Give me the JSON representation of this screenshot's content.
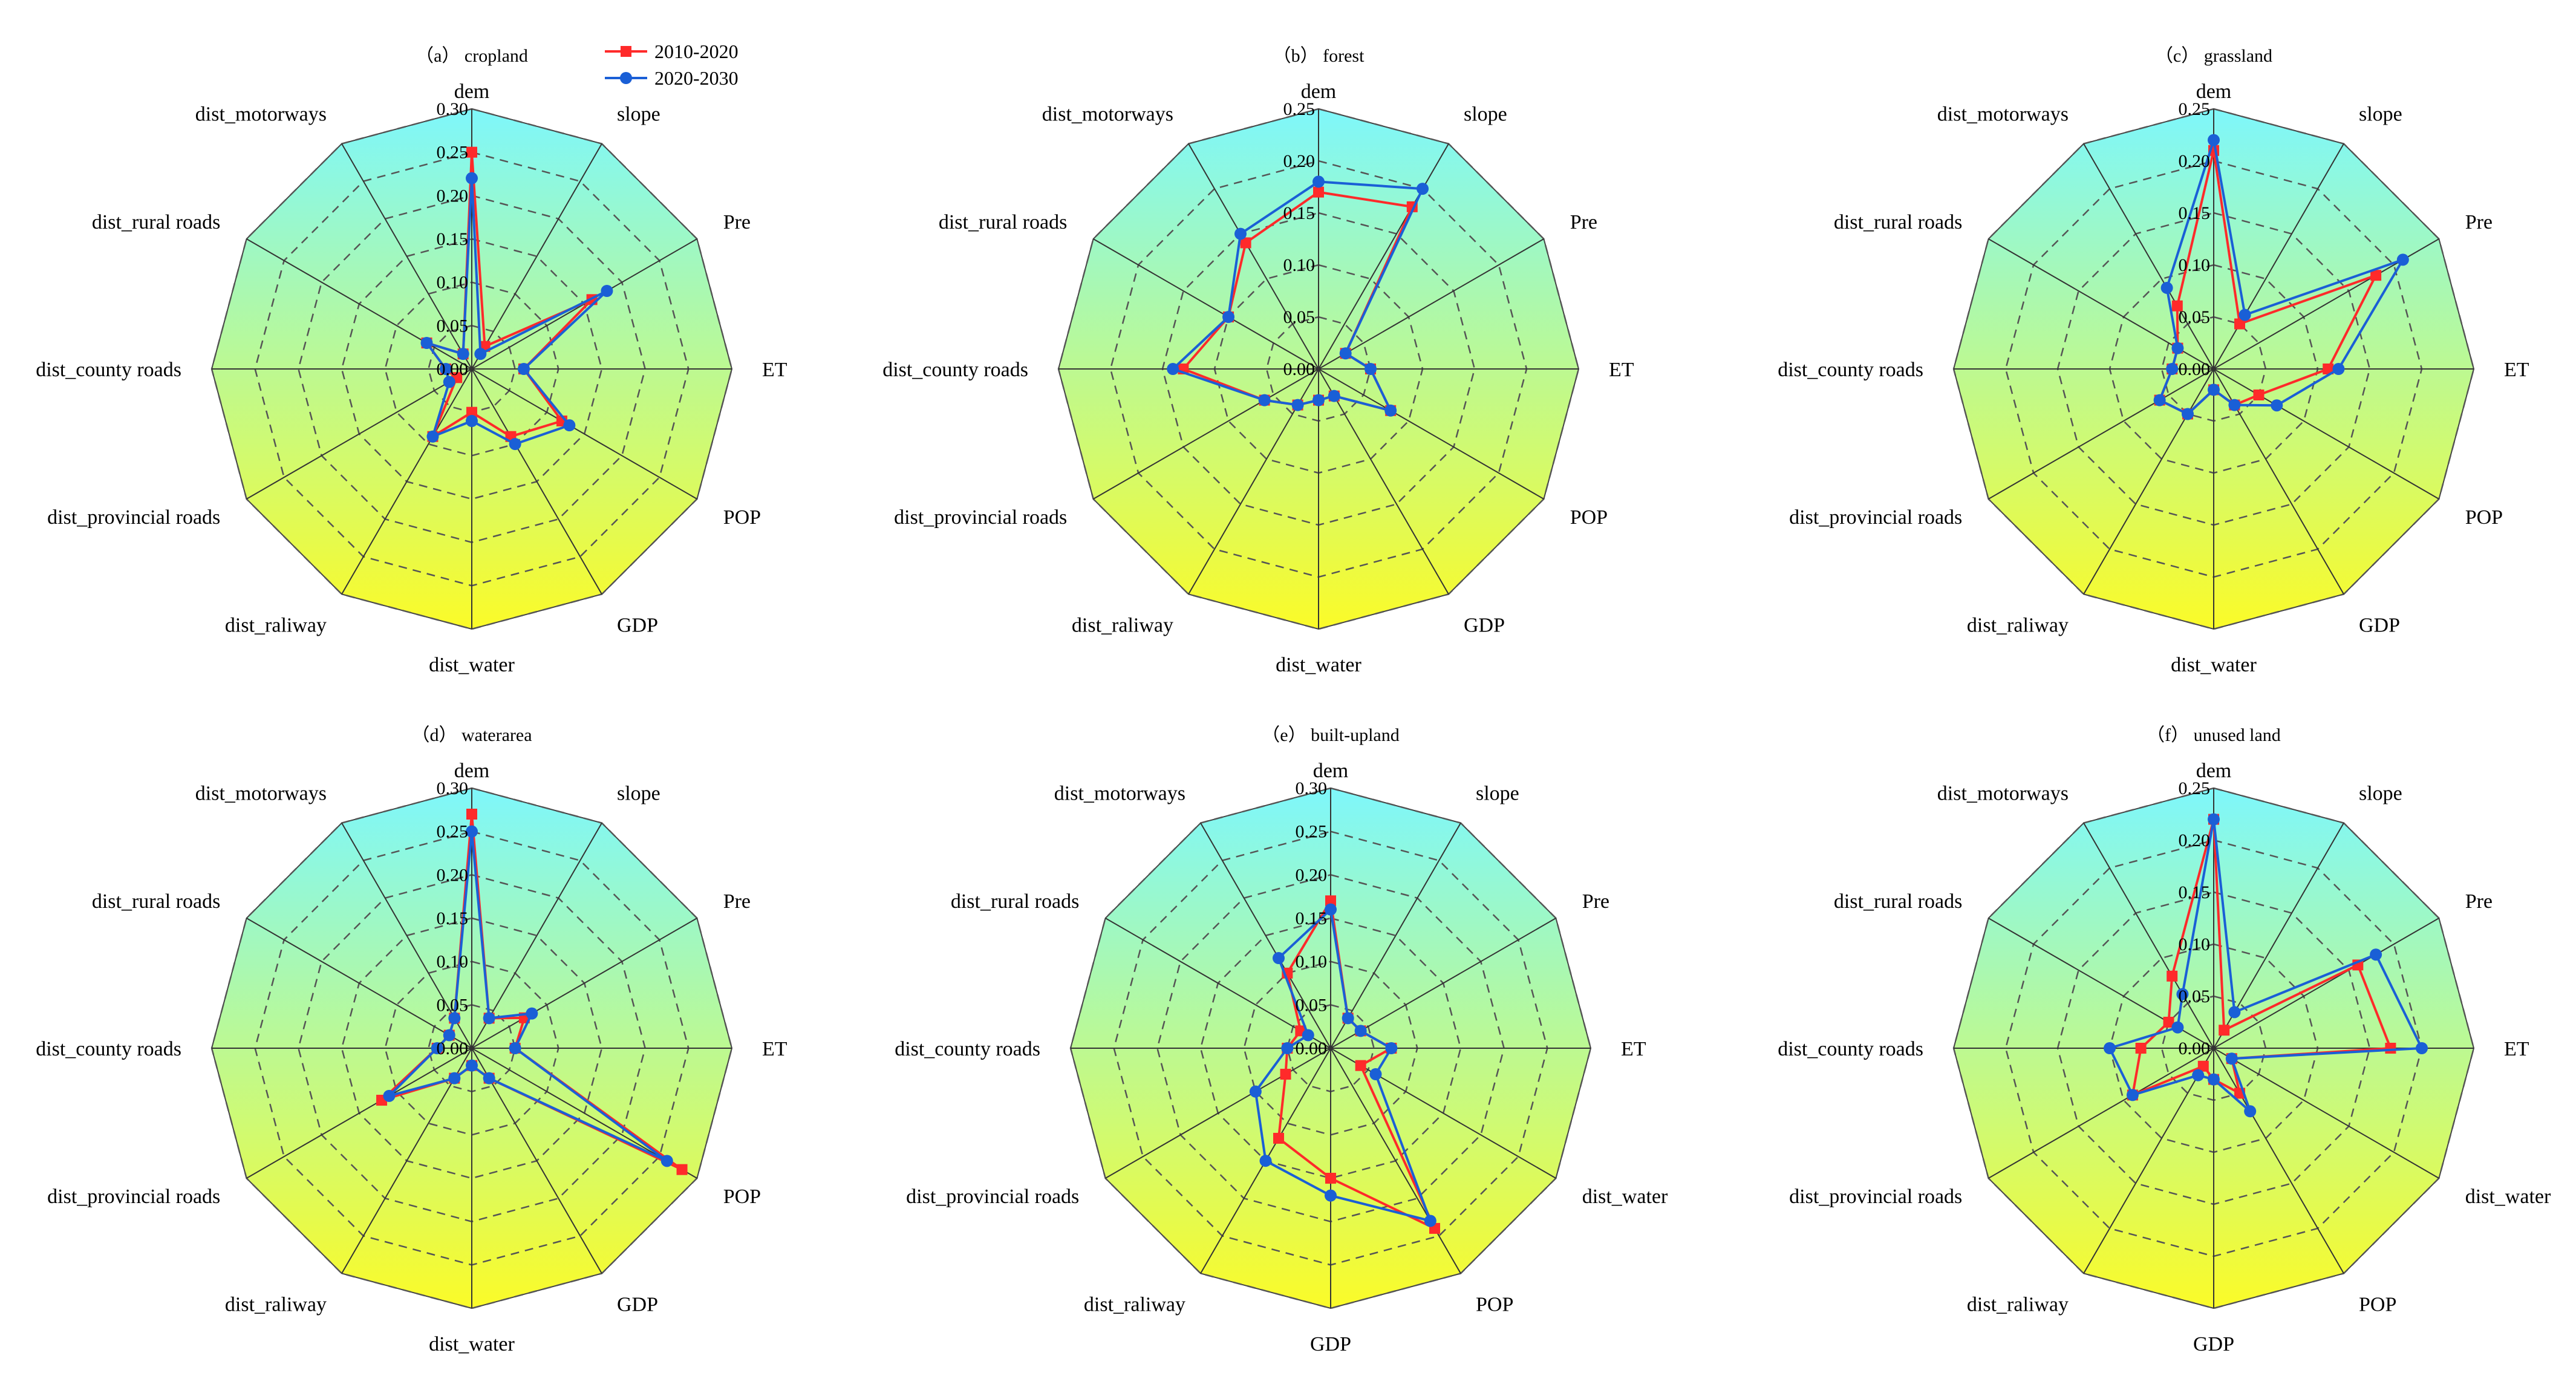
{
  "legend": {
    "series": [
      {
        "name": "2010-2020",
        "color": "#ff2a2a",
        "marker": "square"
      },
      {
        "name": "2020-2030",
        "color": "#1a5fd6",
        "marker": "circle"
      }
    ]
  },
  "colors": {
    "gradient_top": "#7ef7fb",
    "gradient_bottom": "#fbfb28",
    "grid": "#555555"
  },
  "chart_data": [
    {
      "type": "radar",
      "title": "（a） cropland",
      "rmax": 0.3,
      "ticks": [
        "0.00",
        "0.05",
        "0.10",
        "0.15",
        "0.20",
        "0.25",
        "0.30"
      ],
      "tick_values": [
        0,
        0.05,
        0.1,
        0.15,
        0.2,
        0.25,
        0.3
      ],
      "categories": [
        "dem",
        "slope",
        "Pre",
        "ET",
        "POP",
        "GDP",
        "dist_water",
        "dist_raliway",
        "dist_provincial roads",
        "dist_county roads",
        "dist_rural roads",
        "dist_motorways"
      ],
      "series": [
        {
          "name": "2010-2020",
          "values": [
            0.25,
            0.03,
            0.16,
            0.06,
            0.12,
            0.09,
            0.05,
            0.09,
            0.02,
            0.03,
            0.06,
            0.02
          ]
        },
        {
          "name": "2020-2030",
          "values": [
            0.22,
            0.02,
            0.18,
            0.06,
            0.13,
            0.1,
            0.06,
            0.09,
            0.03,
            0.03,
            0.06,
            0.02
          ]
        }
      ]
    },
    {
      "type": "radar",
      "title": "（b） forest",
      "rmax": 0.25,
      "ticks": [
        "0.00",
        "0.05",
        "0.10",
        "0.15",
        "0.20",
        "0.25"
      ],
      "tick_values": [
        0,
        0.05,
        0.1,
        0.15,
        0.2,
        0.25
      ],
      "categories": [
        "dem",
        "slope",
        "Pre",
        "ET",
        "POP",
        "GDP",
        "dist_water",
        "dist_raliway",
        "dist_provincial roads",
        "dist_county roads",
        "dist_rural roads",
        "dist_motorways"
      ],
      "series": [
        {
          "name": "2010-2020",
          "values": [
            0.17,
            0.18,
            0.03,
            0.05,
            0.08,
            0.03,
            0.03,
            0.04,
            0.06,
            0.13,
            0.1,
            0.14
          ]
        },
        {
          "name": "2020-2030",
          "values": [
            0.18,
            0.2,
            0.03,
            0.05,
            0.08,
            0.03,
            0.03,
            0.04,
            0.06,
            0.14,
            0.1,
            0.15
          ]
        }
      ]
    },
    {
      "type": "radar",
      "title": "（c） grassland",
      "rmax": 0.25,
      "ticks": [
        "0.00",
        "0.05",
        "0.10",
        "0.15",
        "0.20",
        "0.25"
      ],
      "tick_values": [
        0,
        0.05,
        0.1,
        0.15,
        0.2,
        0.25
      ],
      "categories": [
        "dem",
        "slope",
        "Pre",
        "ET",
        "POP",
        "GDP",
        "dist_water",
        "dist_raliway",
        "dist_provincial roads",
        "dist_county roads",
        "dist_rural roads",
        "dist_motorways"
      ],
      "series": [
        {
          "name": "2010-2020",
          "values": [
            0.21,
            0.05,
            0.18,
            0.11,
            0.05,
            0.04,
            0.02,
            0.05,
            0.06,
            0.04,
            0.04,
            0.07
          ]
        },
        {
          "name": "2020-2030",
          "values": [
            0.22,
            0.06,
            0.21,
            0.12,
            0.07,
            0.04,
            0.02,
            0.05,
            0.06,
            0.04,
            0.04,
            0.09
          ]
        }
      ]
    },
    {
      "type": "radar",
      "title": "（d） waterarea",
      "rmax": 0.3,
      "ticks": [
        "0.00",
        "0.05",
        "0.10",
        "0.15",
        "0.20",
        "0.25",
        "0.30"
      ],
      "tick_values": [
        0,
        0.05,
        0.1,
        0.15,
        0.2,
        0.25,
        0.3
      ],
      "categories": [
        "dem",
        "slope",
        "Pre",
        "ET",
        "POP",
        "GDP",
        "dist_water",
        "dist_raliway",
        "dist_provincial roads",
        "dist_county roads",
        "dist_rural roads",
        "dist_motorways"
      ],
      "series": [
        {
          "name": "2010-2020",
          "values": [
            0.27,
            0.04,
            0.07,
            0.05,
            0.28,
            0.04,
            0.02,
            0.04,
            0.12,
            0.04,
            0.03,
            0.04
          ]
        },
        {
          "name": "2020-2030",
          "values": [
            0.25,
            0.04,
            0.08,
            0.05,
            0.26,
            0.04,
            0.02,
            0.04,
            0.11,
            0.04,
            0.03,
            0.04
          ]
        }
      ]
    },
    {
      "type": "radar",
      "title": "（e） built-upland",
      "rmax": 0.3,
      "ticks": [
        "0.00",
        "0.05",
        "0.10",
        "0.15",
        "0.20",
        "0.25",
        "0.30"
      ],
      "tick_values": [
        0,
        0.05,
        0.1,
        0.15,
        0.2,
        0.25,
        0.3
      ],
      "categories": [
        "dem",
        "slope",
        "Pre",
        "ET",
        "dist_water",
        "POP",
        "GDP",
        "dist_raliway",
        "dist_provincial roads",
        "dist_county roads",
        "dist_rural roads",
        "dist_motorways"
      ],
      "series": [
        {
          "name": "2010-2020",
          "values": [
            0.17,
            0.04,
            0.04,
            0.07,
            0.04,
            0.24,
            0.15,
            0.12,
            0.06,
            0.05,
            0.04,
            0.1
          ]
        },
        {
          "name": "2020-2030",
          "values": [
            0.16,
            0.04,
            0.04,
            0.07,
            0.06,
            0.23,
            0.17,
            0.15,
            0.1,
            0.05,
            0.03,
            0.12
          ]
        }
      ]
    },
    {
      "type": "radar",
      "title": "（f） unused land",
      "rmax": 0.25,
      "ticks": [
        "0.00",
        "0.05",
        "0.10",
        "0.15",
        "0.20",
        "0.25"
      ],
      "tick_values": [
        0,
        0.05,
        0.1,
        0.15,
        0.2,
        0.25
      ],
      "categories": [
        "dem",
        "slope",
        "Pre",
        "ET",
        "dist_water",
        "POP",
        "GDP",
        "dist_raliway",
        "dist_provincial roads",
        "dist_county roads",
        "dist_rural roads",
        "dist_motorways"
      ],
      "series": [
        {
          "name": "2010-2020",
          "values": [
            0.22,
            0.02,
            0.16,
            0.17,
            0.02,
            0.05,
            0.03,
            0.02,
            0.09,
            0.07,
            0.05,
            0.08
          ]
        },
        {
          "name": "2020-2030",
          "values": [
            0.22,
            0.04,
            0.18,
            0.2,
            0.02,
            0.07,
            0.03,
            0.03,
            0.09,
            0.1,
            0.04,
            0.06
          ]
        }
      ]
    }
  ]
}
